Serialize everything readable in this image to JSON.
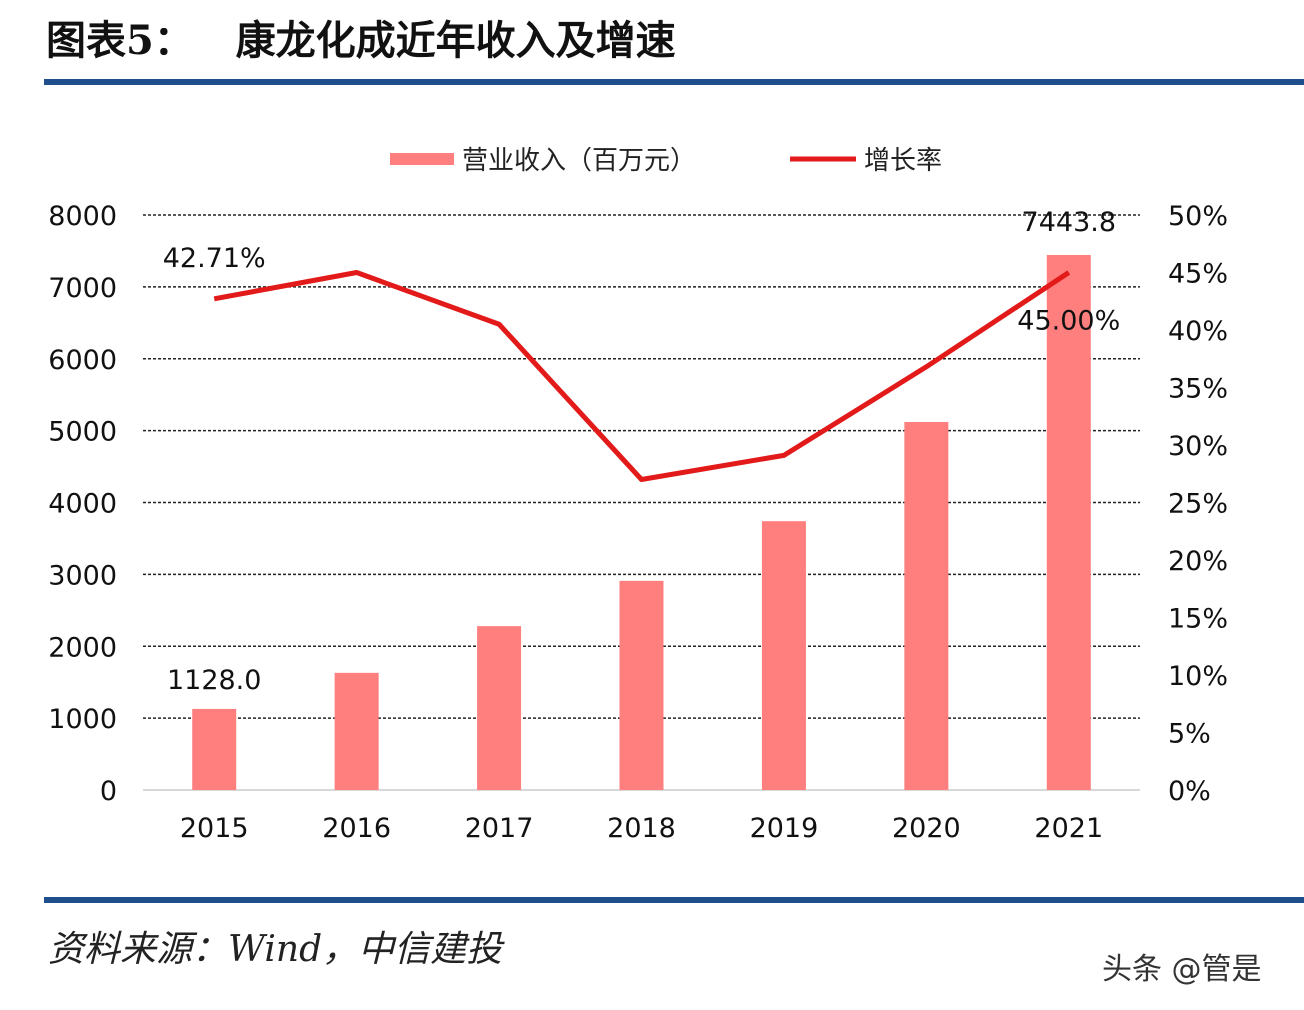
{
  "header": {
    "title": "图表5：   康龙化成近年收入及增速",
    "rule_color": "#1f4e8c"
  },
  "footer": {
    "source": "资料来源：Wind，中信建投",
    "watermark": "头条 @管是"
  },
  "chart_data": {
    "type": "bar+line",
    "categories": [
      "2015",
      "2016",
      "2017",
      "2018",
      "2019",
      "2020",
      "2021"
    ],
    "series": [
      {
        "name": "营业收入（百万元）",
        "type": "bar",
        "axis": "left",
        "color": "#ff7f7f",
        "values": [
          1128.0,
          1630,
          2280,
          2910,
          3740,
          5120,
          7443.8
        ]
      },
      {
        "name": "增长率",
        "type": "line",
        "axis": "right",
        "color": "#e31a1a",
        "values": [
          42.71,
          45.0,
          40.5,
          27.0,
          29.1,
          36.8,
          45.0
        ]
      }
    ],
    "data_labels": [
      {
        "series": 0,
        "index": 0,
        "text": "1128.0"
      },
      {
        "series": 0,
        "index": 6,
        "text": "7443.8"
      },
      {
        "series": 1,
        "index": 0,
        "text": "42.71%"
      },
      {
        "series": 1,
        "index": 6,
        "text": "45.00%"
      }
    ],
    "y_left": {
      "ylim": [
        0,
        8000
      ],
      "ticks": [
        "0",
        "1000",
        "2000",
        "3000",
        "4000",
        "5000",
        "6000",
        "7000",
        "8000"
      ]
    },
    "y_right": {
      "ylim": [
        0,
        50
      ],
      "ticks": [
        "0%",
        "5%",
        "10%",
        "15%",
        "20%",
        "25%",
        "30%",
        "35%",
        "40%",
        "45%",
        "50%"
      ]
    },
    "grid": true,
    "legend": "top"
  }
}
